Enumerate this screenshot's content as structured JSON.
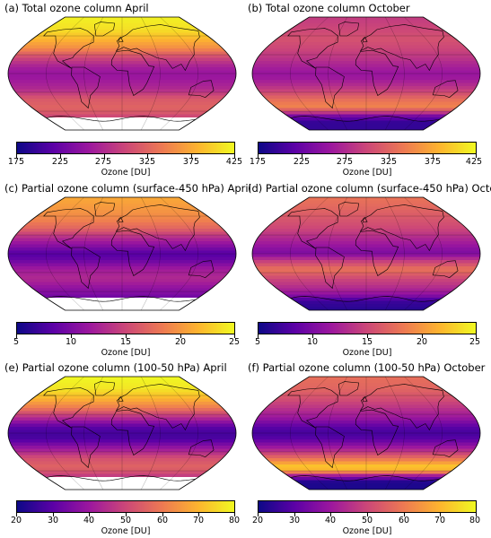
{
  "colormap": [
    "#0d0887",
    "#5c01a6",
    "#9c179e",
    "#cc4778",
    "#ed7953",
    "#fdb42f",
    "#f0f921"
  ],
  "panels": [
    {
      "title": "(a) Total ozone column April",
      "colorbar_label": "Ozone [DU]",
      "ticks": [
        "175",
        "225",
        "275",
        "325",
        "375",
        "425"
      ],
      "range": [
        175,
        425
      ],
      "lat_profile": [
        [
          90,
          420
        ],
        [
          70,
          410
        ],
        [
          55,
          385
        ],
        [
          40,
          355
        ],
        [
          25,
          300
        ],
        [
          10,
          265
        ],
        [
          0,
          255
        ],
        [
          -10,
          260
        ],
        [
          -25,
          275
        ],
        [
          -40,
          315
        ],
        [
          -55,
          325
        ],
        [
          -65,
          310
        ],
        [
          -72,
          290
        ]
      ],
      "hatch_south": true
    },
    {
      "title": "(b) Total ozone column October",
      "colorbar_label": "Ozone [DU]",
      "ticks": [
        "175",
        "225",
        "275",
        "325",
        "375",
        "425"
      ],
      "range": [
        175,
        425
      ],
      "lat_profile": [
        [
          90,
          290
        ],
        [
          70,
          300
        ],
        [
          55,
          310
        ],
        [
          40,
          300
        ],
        [
          25,
          285
        ],
        [
          10,
          265
        ],
        [
          0,
          255
        ],
        [
          -10,
          262
        ],
        [
          -25,
          290
        ],
        [
          -40,
          330
        ],
        [
          -52,
          350
        ],
        [
          -60,
          310
        ],
        [
          -68,
          230
        ],
        [
          -78,
          195
        ],
        [
          -90,
          195
        ]
      ],
      "hatch_south": false
    },
    {
      "title": "(c) Partial ozone column (surface-450 hPa) April",
      "colorbar_label": "Ozone [DU]",
      "ticks": [
        "5",
        "10",
        "15",
        "20",
        "25"
      ],
      "range": [
        5,
        25
      ],
      "lat_profile": [
        [
          90,
          21
        ],
        [
          70,
          20
        ],
        [
          55,
          19
        ],
        [
          40,
          17
        ],
        [
          25,
          13
        ],
        [
          10,
          10
        ],
        [
          0,
          8
        ],
        [
          -10,
          9
        ],
        [
          -25,
          12
        ],
        [
          -40,
          13
        ],
        [
          -55,
          11
        ],
        [
          -65,
          10
        ],
        [
          -72,
          9
        ]
      ],
      "hatch_south": true
    },
    {
      "title": "(d) Partial ozone column (surface-450 hPa) October",
      "colorbar_label": "Ozone [DU]",
      "ticks": [
        "5",
        "10",
        "15",
        "20",
        "25"
      ],
      "range": [
        5,
        25
      ],
      "lat_profile": [
        [
          90,
          18
        ],
        [
          70,
          17
        ],
        [
          55,
          16
        ],
        [
          40,
          15
        ],
        [
          25,
          13
        ],
        [
          10,
          11
        ],
        [
          0,
          10
        ],
        [
          -10,
          14
        ],
        [
          -25,
          18
        ],
        [
          -40,
          15
        ],
        [
          -55,
          13
        ],
        [
          -65,
          11
        ],
        [
          -75,
          7
        ],
        [
          -90,
          6
        ]
      ],
      "hatch_south": false
    },
    {
      "title": "(e) Partial ozone column (100-50 hPa) April",
      "colorbar_label": "Ozone [DU]",
      "ticks": [
        "20",
        "30",
        "40",
        "50",
        "60",
        "70",
        "80"
      ],
      "range": [
        20,
        80
      ],
      "lat_profile": [
        [
          90,
          80
        ],
        [
          70,
          77
        ],
        [
          55,
          70
        ],
        [
          40,
          60
        ],
        [
          25,
          45
        ],
        [
          10,
          30
        ],
        [
          0,
          27
        ],
        [
          -10,
          28
        ],
        [
          -25,
          40
        ],
        [
          -40,
          52
        ],
        [
          -55,
          56
        ],
        [
          -65,
          50
        ],
        [
          -72,
          45
        ]
      ],
      "hatch_south": true
    },
    {
      "title": "(f) Partial ozone column (100-50 hPa) October",
      "colorbar_label": "Ozone [DU]",
      "ticks": [
        "20",
        "30",
        "40",
        "50",
        "60",
        "70",
        "80"
      ],
      "range": [
        20,
        80
      ],
      "lat_profile": [
        [
          90,
          58
        ],
        [
          70,
          56
        ],
        [
          55,
          52
        ],
        [
          40,
          46
        ],
        [
          25,
          40
        ],
        [
          10,
          30
        ],
        [
          0,
          27
        ],
        [
          -10,
          30
        ],
        [
          -25,
          42
        ],
        [
          -40,
          58
        ],
        [
          -52,
          72
        ],
        [
          -60,
          70
        ],
        [
          -68,
          40
        ],
        [
          -78,
          22
        ],
        [
          -90,
          22
        ]
      ],
      "hatch_south": false
    }
  ]
}
